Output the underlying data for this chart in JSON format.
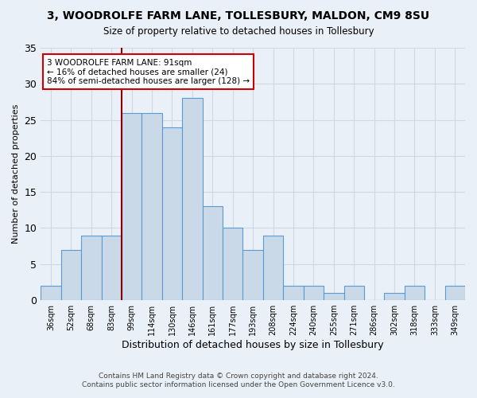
{
  "title": "3, WOODROLFE FARM LANE, TOLLESBURY, MALDON, CM9 8SU",
  "subtitle": "Size of property relative to detached houses in Tollesbury",
  "xlabel": "Distribution of detached houses by size in Tollesbury",
  "ylabel": "Number of detached properties",
  "footnote1": "Contains HM Land Registry data © Crown copyright and database right 2024.",
  "footnote2": "Contains public sector information licensed under the Open Government Licence v3.0.",
  "categories": [
    "36sqm",
    "52sqm",
    "68sqm",
    "83sqm",
    "99sqm",
    "114sqm",
    "130sqm",
    "146sqm",
    "161sqm",
    "177sqm",
    "193sqm",
    "208sqm",
    "224sqm",
    "240sqm",
    "255sqm",
    "271sqm",
    "286sqm",
    "302sqm",
    "318sqm",
    "333sqm",
    "349sqm"
  ],
  "values": [
    2,
    7,
    9,
    9,
    26,
    26,
    24,
    28,
    13,
    10,
    7,
    9,
    2,
    2,
    1,
    2,
    0,
    1,
    2,
    0,
    2
  ],
  "bar_color": "#c9d9e8",
  "bar_edge_color": "#5b9bd5",
  "grid_color": "#d0d8e4",
  "background_color": "#eaf0f8",
  "vline_color": "#8b0000",
  "annotation_text": "3 WOODROLFE FARM LANE: 91sqm\n← 16% of detached houses are smaller (24)\n84% of semi-detached houses are larger (128) →",
  "annotation_box_color": "#ffffff",
  "annotation_border_color": "#cc0000",
  "ylim": [
    0,
    35
  ],
  "yticks": [
    0,
    5,
    10,
    15,
    20,
    25,
    30,
    35
  ]
}
